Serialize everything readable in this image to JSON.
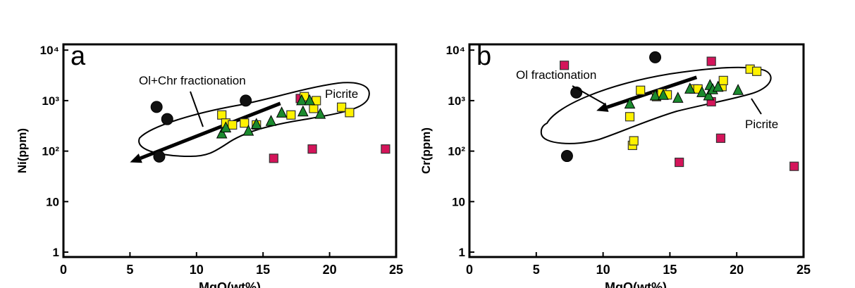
{
  "chart_data": [
    {
      "type": "scatter",
      "panel_label": "a",
      "xlabel": "MgO(wt%)",
      "ylabel": "Ni(ppm)",
      "x_ticks": [
        "0",
        "5",
        "10",
        "15",
        "20",
        "25"
      ],
      "xlim": [
        0,
        25
      ],
      "ylim": [
        0.8,
        13000
      ],
      "log_y": true,
      "y_tick_values": [
        1,
        10,
        100,
        1000,
        10000
      ],
      "y_ticks": [
        {
          "base": "1",
          "exp": ""
        },
        {
          "base": "10",
          "exp": ""
        },
        {
          "base": "10",
          "exp": "2"
        },
        {
          "base": "10",
          "exp": "3"
        },
        {
          "base": "10",
          "exp": "4"
        }
      ],
      "annotations": {
        "trend": "Ol+Chr fractionation",
        "field": "Picrite"
      },
      "arrow": {
        "from": [
          16.3,
          880
        ],
        "to": [
          5,
          60
        ]
      },
      "outline_shape": "picrite-field",
      "series": [
        {
          "marker": "circle",
          "color": "#111111",
          "points": [
            [
              7.0,
              750
            ],
            [
              7.8,
              430
            ],
            [
              7.2,
              78
            ],
            [
              13.7,
              1000
            ]
          ]
        },
        {
          "marker": "square",
          "color": "#d4145a",
          "points": [
            [
              17.8,
              1100
            ],
            [
              15.8,
              72
            ],
            [
              18.7,
              110
            ],
            [
              24.2,
              110
            ]
          ]
        },
        {
          "marker": "square",
          "color": "#fff200",
          "points": [
            [
              11.9,
              520
            ],
            [
              12.2,
              360
            ],
            [
              12.7,
              330
            ],
            [
              13.6,
              360
            ],
            [
              14.5,
              330
            ],
            [
              17.1,
              520
            ],
            [
              18.1,
              1200
            ],
            [
              18.8,
              700
            ],
            [
              19.0,
              1000
            ],
            [
              20.9,
              740
            ],
            [
              21.5,
              580
            ]
          ]
        },
        {
          "marker": "triangle",
          "color": "#1b8a2e",
          "points": [
            [
              11.9,
              220
            ],
            [
              12.2,
              290
            ],
            [
              13.9,
              250
            ],
            [
              14.5,
              340
            ],
            [
              15.6,
              390
            ],
            [
              16.4,
              570
            ],
            [
              17.9,
              1000
            ],
            [
              18.0,
              600
            ],
            [
              18.5,
              1000
            ],
            [
              19.3,
              540
            ]
          ]
        }
      ]
    },
    {
      "type": "scatter",
      "panel_label": "b",
      "xlabel": "MgO(wt%)",
      "ylabel": "Cr(ppm)",
      "x_ticks": [
        "0",
        "5",
        "10",
        "15",
        "20",
        "25"
      ],
      "xlim": [
        0,
        25
      ],
      "ylim": [
        0.8,
        13000
      ],
      "log_y": true,
      "y_tick_values": [
        1,
        10,
        100,
        1000,
        10000
      ],
      "y_ticks": [
        {
          "base": "1",
          "exp": ""
        },
        {
          "base": "10",
          "exp": ""
        },
        {
          "base": "10",
          "exp": "2"
        },
        {
          "base": "10",
          "exp": "3"
        },
        {
          "base": "10",
          "exp": "4"
        }
      ],
      "annotations": {
        "trend": "Ol fractionation",
        "field": "Picrite"
      },
      "arrow": {
        "from": [
          17,
          2900
        ],
        "to": [
          9.5,
          630
        ]
      },
      "outline_shape": "picrite-field",
      "series": [
        {
          "marker": "circle",
          "color": "#111111",
          "points": [
            [
              8.0,
              1450
            ],
            [
              13.9,
              7200
            ],
            [
              7.3,
              80
            ]
          ]
        },
        {
          "marker": "square",
          "color": "#d4145a",
          "points": [
            [
              7.1,
              5000
            ],
            [
              18.1,
              6000
            ],
            [
              18.1,
              950
            ],
            [
              18.8,
              180
            ],
            [
              15.7,
              60
            ],
            [
              24.3,
              50
            ]
          ]
        },
        {
          "marker": "square",
          "color": "#fff200",
          "points": [
            [
              12.0,
              480
            ],
            [
              12.2,
              130
            ],
            [
              12.3,
              160
            ],
            [
              12.8,
              1600
            ],
            [
              14.0,
              1200
            ],
            [
              14.4,
              1400
            ],
            [
              14.8,
              1300
            ],
            [
              16.8,
              1700
            ],
            [
              17.1,
              1700
            ],
            [
              18.9,
              1900
            ],
            [
              19.0,
              2500
            ],
            [
              21.0,
              4200
            ],
            [
              21.5,
              3800
            ]
          ]
        },
        {
          "marker": "triangle",
          "color": "#1b8a2e",
          "points": [
            [
              12.0,
              860
            ],
            [
              13.9,
              1250
            ],
            [
              14.5,
              1280
            ],
            [
              15.6,
              1120
            ],
            [
              16.5,
              1700
            ],
            [
              17.4,
              1450
            ],
            [
              17.9,
              1250
            ],
            [
              18.0,
              2000
            ],
            [
              18.2,
              1650
            ],
            [
              18.6,
              1850
            ],
            [
              20.1,
              1600
            ]
          ]
        }
      ]
    }
  ]
}
